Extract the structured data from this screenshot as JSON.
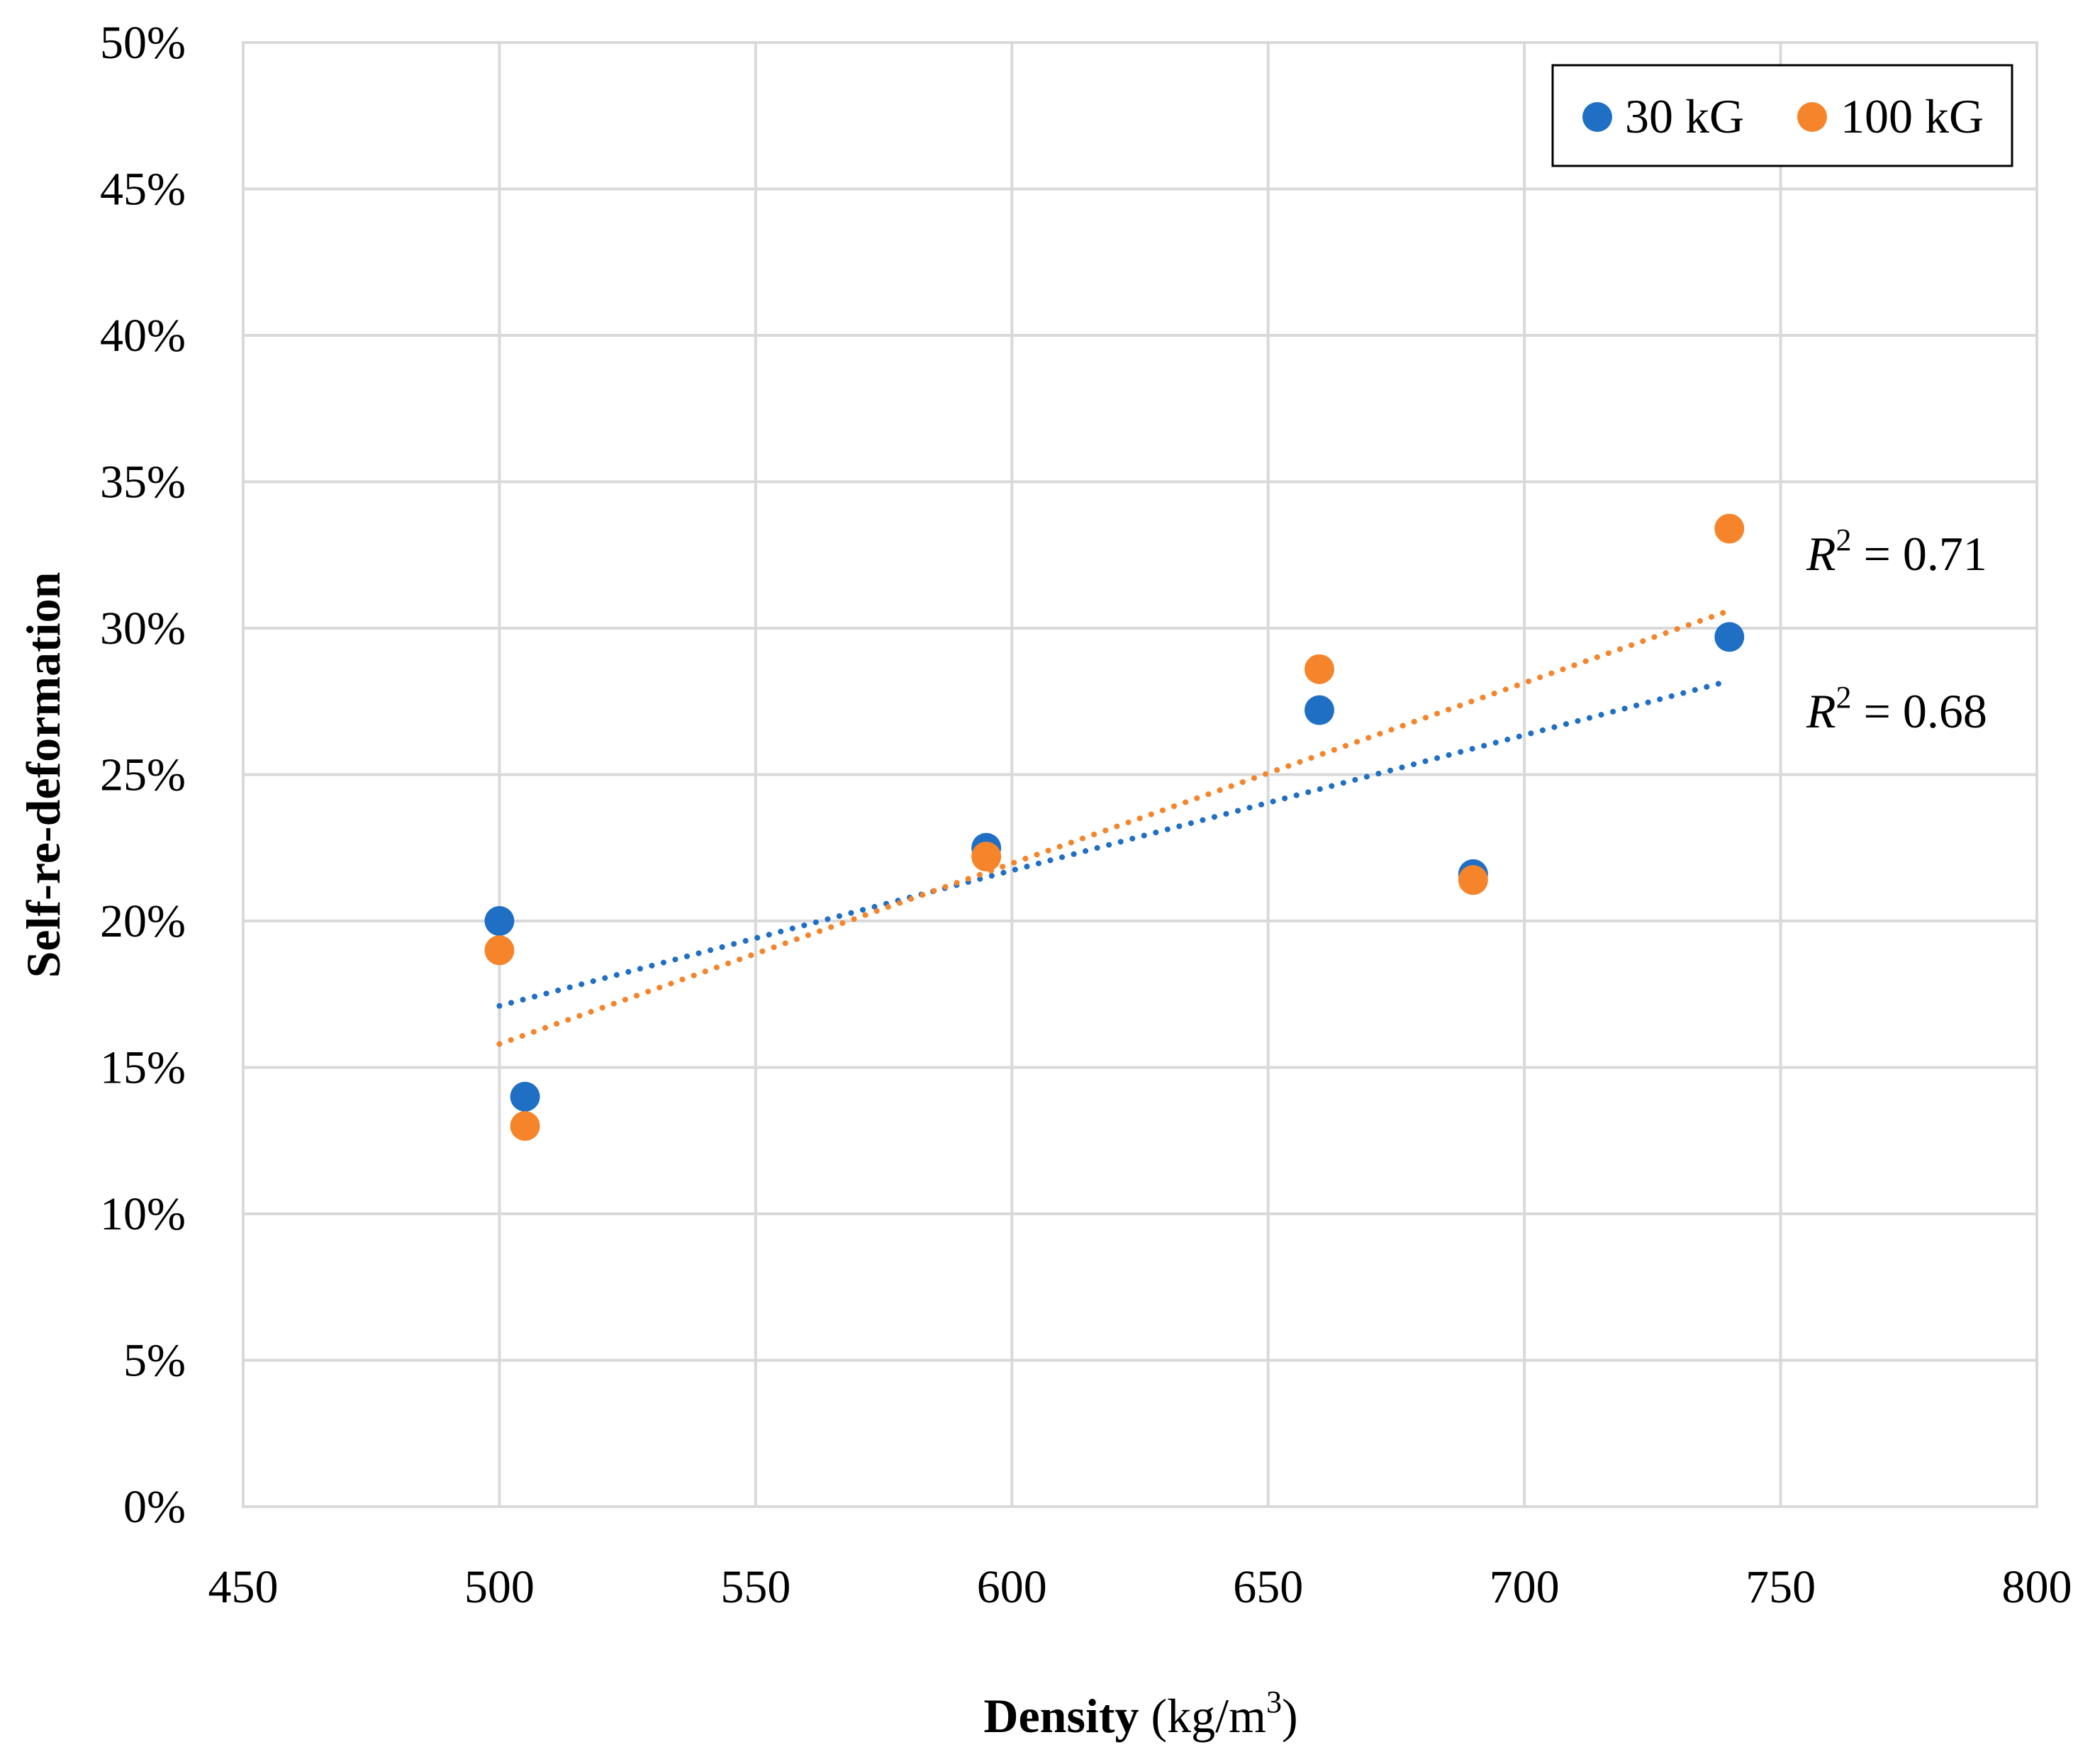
{
  "chart_data": {
    "type": "scatter",
    "title": "",
    "xlabel": {
      "bold": "Density",
      "normal": " (kg/m",
      "sup": "3",
      "close": ")"
    },
    "ylabel": "Self-re-deformation",
    "xlim": [
      450,
      800
    ],
    "ylim": [
      0,
      0.5
    ],
    "x_ticks": [
      450,
      500,
      550,
      600,
      650,
      700,
      750,
      800
    ],
    "x_tick_labels": [
      "450",
      "500",
      "550",
      "600",
      "650",
      "700",
      "750",
      "800"
    ],
    "y_ticks": [
      0,
      0.05,
      0.1,
      0.15,
      0.2,
      0.25,
      0.3,
      0.35,
      0.4,
      0.45,
      0.5
    ],
    "y_tick_labels": [
      "0%",
      "5%",
      "10%",
      "15%",
      "20%",
      "25%",
      "30%",
      "35%",
      "40%",
      "45%",
      "50%"
    ],
    "grid": true,
    "legend_position": "top-right",
    "series": [
      {
        "name": "30 kG",
        "color": "#1f6fc5",
        "x": [
          500,
          505,
          595,
          660,
          690,
          740
        ],
        "y": [
          0.2,
          0.14,
          0.225,
          0.272,
          0.216,
          0.297
        ],
        "trendline": {
          "x": [
            500,
            740
          ],
          "y": [
            0.171,
            0.282
          ]
        },
        "r2": {
          "italic": "R",
          "sup": "2",
          "rest": " = 0.68"
        }
      },
      {
        "name": "100 kG",
        "color": "#f5842a",
        "x": [
          500,
          505,
          595,
          660,
          690,
          740
        ],
        "y": [
          0.19,
          0.13,
          0.222,
          0.286,
          0.214,
          0.334
        ],
        "trendline": {
          "x": [
            500,
            740
          ],
          "y": [
            0.158,
            0.306
          ]
        },
        "r2": {
          "italic": "R",
          "sup": "2",
          "rest": " = 0.71"
        }
      }
    ]
  }
}
